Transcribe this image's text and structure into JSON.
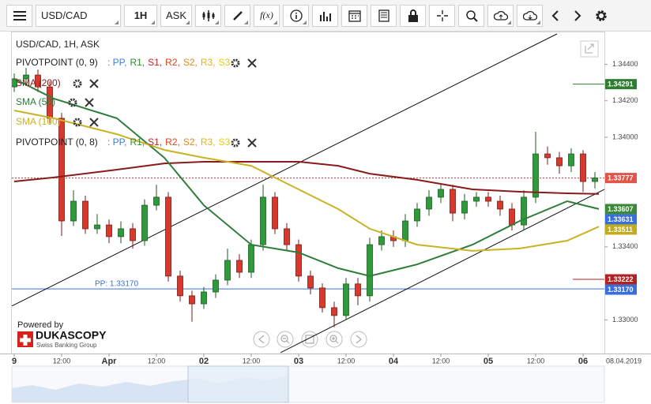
{
  "toolbar": {
    "symbol": "USD/CAD",
    "period": "1H",
    "side": "ASK",
    "fx": "f(x)"
  },
  "legend": {
    "title": "USD/CAD, 1H, ASK",
    "pivots": [
      {
        "name": "PIVOTPOINT (0, 9)",
        "levels": [
          {
            "text": ": PP,",
            "color": "#3b7dd8"
          },
          {
            "text": "R1,",
            "color": "#2f8a2f"
          },
          {
            "text": "S1,",
            "color": "#c82020"
          },
          {
            "text": "R2,",
            "color": "#e0401a"
          },
          {
            "text": "S2,",
            "color": "#e8861a"
          },
          {
            "text": "R3,",
            "color": "#e8b010"
          },
          {
            "text": "S3",
            "color": "#e6d000"
          }
        ]
      },
      {
        "name": "PIVOTPOINT (0, 8)",
        "levels": [
          {
            "text": ": PP,",
            "color": "#3b7dd8"
          },
          {
            "text": "R1,",
            "color": "#2f8a2f"
          },
          {
            "text": "S1,",
            "color": "#c82020"
          },
          {
            "text": "R2,",
            "color": "#e0401a"
          },
          {
            "text": "S2,",
            "color": "#e8861a"
          },
          {
            "text": "R3,",
            "color": "#e8b010"
          },
          {
            "text": "S3",
            "color": "#e6d000"
          }
        ]
      }
    ]
  },
  "branding": {
    "powered": "Powered by",
    "name": "DUKASCOPY",
    "tagline": "Swiss Banking Group"
  },
  "chart_data": {
    "type": "candlestick",
    "up_color": "#2f9a3a",
    "down_color": "#d8392c",
    "x": [
      0,
      3,
      6,
      9,
      12,
      15,
      18,
      21,
      24,
      27,
      30,
      33,
      36,
      39,
      42,
      45,
      48,
      51,
      54,
      57,
      60,
      63,
      66,
      69,
      72,
      75,
      78,
      81,
      84,
      87,
      90,
      93,
      96,
      99,
      102,
      105,
      108,
      111,
      114,
      117,
      120,
      123,
      126,
      129,
      132,
      135,
      138,
      141,
      144,
      147
    ],
    "open": [
      1.34276,
      1.3432,
      1.34341,
      1.34276,
      1.34104,
      1.33542,
      1.3365,
      1.33499,
      1.3352,
      1.33456,
      1.33499,
      1.33434,
      1.33628,
      1.33672,
      1.3324,
      1.33132,
      1.33088,
      1.33153,
      1.33218,
      1.33326,
      1.33261,
      1.33412,
      1.33672,
      1.33499,
      1.33412,
      1.3324,
      1.33175,
      1.33067,
      1.33024,
      1.33197,
      1.33132,
      1.33412,
      1.33456,
      1.33434,
      1.33542,
      1.33607,
      1.33672,
      1.33715,
      1.33585,
      1.3365,
      1.33672,
      1.3365,
      1.33607,
      1.3352,
      1.33672,
      1.33909,
      1.33888,
      1.33844,
      1.33909,
      1.33758
    ],
    "high": [
      1.3435,
      1.3438,
      1.34371,
      1.34306,
      1.34134,
      1.3371,
      1.3368,
      1.3358,
      1.3355,
      1.3354,
      1.3353,
      1.3366,
      1.3374,
      1.337,
      1.3327,
      1.3316,
      1.3318,
      1.3325,
      1.3339,
      1.3336,
      1.3344,
      1.3374,
      1.337,
      1.3353,
      1.3344,
      1.3327,
      1.332,
      1.331,
      1.3323,
      1.3323,
      1.3345,
      1.3349,
      1.3349,
      1.3358,
      1.3364,
      1.3371,
      1.3375,
      1.3374,
      1.3369,
      1.337,
      1.337,
      1.3368,
      1.3364,
      1.3371,
      1.3403,
      1.3395,
      1.3392,
      1.3394,
      1.3393,
      1.3381
    ],
    "low": [
      1.34248,
      1.34292,
      1.34248,
      1.34076,
      1.3346,
      1.33514,
      1.33471,
      1.33471,
      1.3342,
      1.3342,
      1.3339,
      1.33406,
      1.336,
      1.3321,
      1.331,
      1.3299,
      1.3306,
      1.3312,
      1.3319,
      1.3323,
      1.3323,
      1.3338,
      1.3347,
      1.3338,
      1.3321,
      1.3314,
      1.3304,
      1.3296,
      1.33,
      1.3308,
      1.331,
      1.3338,
      1.334,
      1.334,
      1.3351,
      1.3357,
      1.3364,
      1.3354,
      1.3355,
      1.3362,
      1.3362,
      1.3357,
      1.3349,
      1.3349,
      1.3364,
      1.3385,
      1.338,
      1.3381,
      1.337,
      1.3372
    ],
    "close": [
      1.3432,
      1.34341,
      1.34276,
      1.34104,
      1.33542,
      1.3365,
      1.33499,
      1.3352,
      1.33456,
      1.33499,
      1.33434,
      1.33628,
      1.33672,
      1.3324,
      1.33132,
      1.33088,
      1.33153,
      1.33218,
      1.33326,
      1.33261,
      1.33412,
      1.33672,
      1.33499,
      1.33412,
      1.3324,
      1.33175,
      1.33067,
      1.33024,
      1.33197,
      1.33132,
      1.33412,
      1.33456,
      1.33434,
      1.33542,
      1.33607,
      1.33672,
      1.33715,
      1.33585,
      1.3365,
      1.33672,
      1.3365,
      1.33607,
      1.3352,
      1.33672,
      1.33909,
      1.33888,
      1.33844,
      1.33909,
      1.33758,
      1.33777
    ],
    "xlim": [
      -0.6,
      149.4
    ],
    "ylim": [
      1.32829,
      1.34579
    ],
    "yticks": [
      {
        "value": 1.33,
        "label": "1.33000"
      },
      {
        "value": 1.334,
        "label": "1.33400"
      },
      {
        "value": 1.34,
        "label": "1.34000"
      },
      {
        "value": 1.342,
        "label": "1.34200"
      },
      {
        "value": 1.344,
        "label": "1.34400"
      }
    ],
    "xticks": [
      {
        "value": 0,
        "label": "9"
      },
      {
        "value": 12,
        "label": "12:00"
      },
      {
        "value": 24,
        "label": "Apr"
      },
      {
        "value": 36,
        "label": "12:00"
      },
      {
        "value": 48,
        "label": "02"
      },
      {
        "value": 60,
        "label": "12:00"
      },
      {
        "value": 72,
        "label": "03"
      },
      {
        "value": 84,
        "label": "12:00"
      },
      {
        "value": 96,
        "label": "04"
      },
      {
        "value": 108,
        "label": "12:00"
      },
      {
        "value": 120,
        "label": "05"
      },
      {
        "value": 132,
        "label": "12:00"
      },
      {
        "value": 144,
        "label": "06"
      }
    ],
    "date_label": "08.04.2019",
    "overlays": [
      {
        "name": "SMA (200)",
        "color": "#8b1a1a",
        "x": [
          0,
          10,
          26,
          38,
          48,
          60,
          72,
          82,
          90,
          102,
          116,
          128,
          140,
          148
        ],
        "values": [
          1.33758,
          1.3378,
          1.33823,
          1.33857,
          1.33866,
          1.33866,
          1.33866,
          1.33844,
          1.33801,
          1.33767,
          1.33715,
          1.33702,
          1.33693,
          1.3369
        ]
      },
      {
        "name": "SMA (50)",
        "color": "#2e7d3a",
        "x": [
          0,
          10,
          26,
          38,
          48,
          60,
          72,
          82,
          90,
          102,
          116,
          128,
          140,
          148
        ],
        "values": [
          1.3432,
          1.34212,
          1.34104,
          1.33888,
          1.33628,
          1.33412,
          1.33369,
          1.33283,
          1.3324,
          1.33304,
          1.33412,
          1.33542,
          1.3365,
          1.33607
        ]
      },
      {
        "name": "SMA (100)",
        "color": "#c9b224",
        "x": [
          0,
          10,
          26,
          38,
          48,
          60,
          72,
          82,
          90,
          102,
          116,
          128,
          140,
          148
        ],
        "values": [
          1.34147,
          1.34104,
          1.34017,
          1.33931,
          1.33888,
          1.33844,
          1.33715,
          1.33607,
          1.33499,
          1.33412,
          1.33378,
          1.33391,
          1.33434,
          1.33511
        ]
      }
    ],
    "trendlines": [
      {
        "color": "#111111",
        "x": [
          -0.6,
          137.4
        ],
        "values": [
          1.33076,
          1.34566
        ]
      },
      {
        "color": "#111111",
        "x": [
          67.4,
          149.4
        ],
        "values": [
          1.32821,
          1.33715
        ]
      }
    ],
    "pivot": {
      "label": "PP: 1.33170",
      "value": 1.3317,
      "color": "#3b6fd8"
    },
    "current": {
      "value": 1.33777,
      "color": "#c0392b"
    },
    "price_tags": [
      {
        "value": 1.34291,
        "label": "1.34291",
        "color": "#2f7d32",
        "marker_line": true
      },
      {
        "value": 1.33777,
        "label": "1.33777",
        "color": "#e0544a",
        "marker_line": false
      },
      {
        "value": 1.33607,
        "label": "1.33607",
        "color": "#3a8a3a",
        "marker_line": false
      },
      {
        "value": 1.33631,
        "label": "1.33631",
        "color": "#3b6fd8",
        "marker_line": false
      },
      {
        "value": 1.33511,
        "label": "1.33511",
        "color": "#c2ac1e",
        "marker_line": false
      },
      {
        "value": 1.33222,
        "label": "1.33222",
        "color": "#b22222",
        "marker_line": true
      },
      {
        "value": 1.3317,
        "label": "1.33170",
        "color": "#3b6fd8",
        "marker_line": false
      }
    ]
  }
}
